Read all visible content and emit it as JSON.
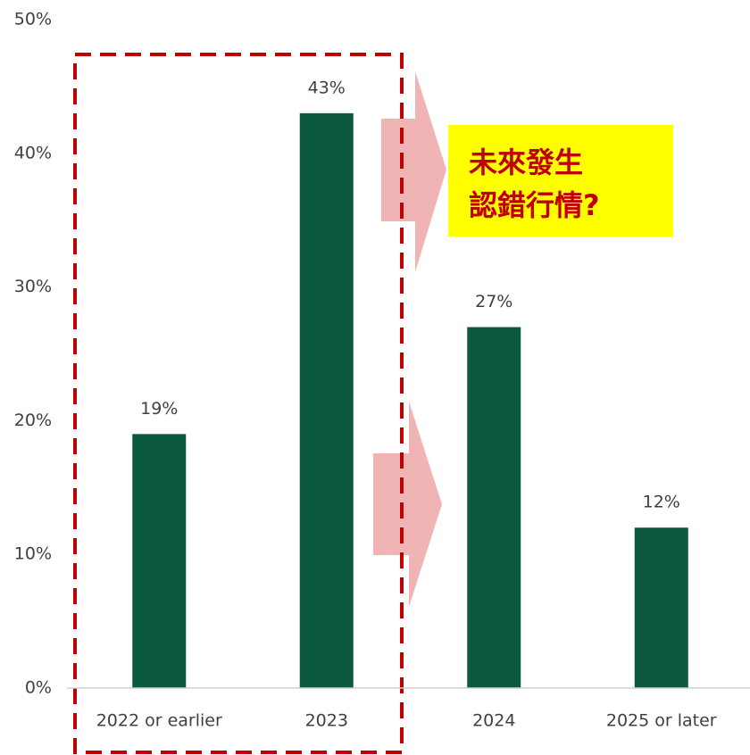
{
  "chart_data": {
    "type": "bar",
    "categories": [
      "2022 or earlier",
      "2023",
      "2024",
      "2025 or later"
    ],
    "values": [
      19,
      43,
      27,
      12
    ],
    "value_labels": [
      "19%",
      "43%",
      "27%",
      "12%"
    ],
    "color": "#0b5a3e",
    "ylim": [
      0,
      50
    ],
    "yticks": [
      {
        "value": 0,
        "label": "0%"
      },
      {
        "value": 10,
        "label": "10%"
      },
      {
        "value": 20,
        "label": "20%"
      },
      {
        "value": 30,
        "label": "30%"
      },
      {
        "value": 40,
        "label": "40%"
      },
      {
        "value": 50,
        "label": "50%"
      }
    ],
    "grid": false,
    "annotation": [
      "未來發生",
      "認錯行情?"
    ]
  }
}
